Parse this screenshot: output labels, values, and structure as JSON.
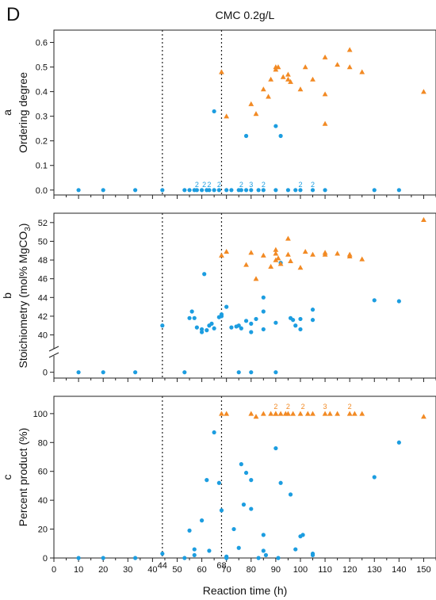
{
  "figure": {
    "panel_letter": "D",
    "title": "CMC 0.2g/L",
    "xlabel": "Reaction time (h)"
  },
  "colors": {
    "blue": "#1c9de0",
    "orange": "#f28a24"
  },
  "chart_data": [
    {
      "type": "scatter",
      "panel": "a",
      "ylabel": "Ordering degree",
      "xlim": [
        0,
        155
      ],
      "ylim": [
        -0.02,
        0.65
      ],
      "yticks": [
        0.0,
        0.1,
        0.2,
        0.3,
        0.4,
        0.5,
        0.6
      ],
      "vlines": [
        44,
        68
      ],
      "series": [
        {
          "marker": "circle",
          "color": "blue",
          "x": [
            10,
            20,
            33,
            44,
            53,
            55,
            57,
            58,
            60,
            62,
            63,
            65,
            67,
            70,
            72,
            75,
            76,
            78,
            80,
            83,
            85,
            90,
            95,
            98,
            100,
            105,
            110,
            130,
            140,
            65,
            90,
            92,
            78
          ],
          "y": [
            0,
            0,
            0,
            0,
            0,
            0,
            0,
            0,
            0,
            0,
            0,
            0,
            0,
            0,
            0,
            0,
            0,
            0,
            0,
            0,
            0,
            0,
            0,
            0,
            0,
            0,
            0,
            0,
            0,
            0.32,
            0.26,
            0.22,
            0.22
          ]
        },
        {
          "marker": "triangle",
          "color": "orange",
          "x": [
            68,
            70,
            80,
            82,
            85,
            87,
            88,
            90,
            90,
            91,
            93,
            95,
            95,
            96,
            100,
            102,
            105,
            110,
            110,
            110,
            115,
            120,
            120,
            125,
            150
          ],
          "y": [
            0.48,
            0.3,
            0.35,
            0.31,
            0.41,
            0.38,
            0.45,
            0.5,
            0.49,
            0.5,
            0.46,
            0.45,
            0.47,
            0.44,
            0.41,
            0.5,
            0.45,
            0.54,
            0.27,
            0.39,
            0.51,
            0.57,
            0.5,
            0.48,
            0.4
          ]
        }
      ],
      "annotations": [
        {
          "text": "2",
          "x": 58,
          "y": 0.0,
          "color": "blue"
        },
        {
          "text": "2",
          "x": 61,
          "y": 0.0,
          "color": "blue"
        },
        {
          "text": "2",
          "x": 63,
          "y": 0.0,
          "color": "blue"
        },
        {
          "text": "2",
          "x": 67,
          "y": 0.0,
          "color": "blue"
        },
        {
          "text": "2",
          "x": 76,
          "y": 0.0,
          "color": "blue"
        },
        {
          "text": "3",
          "x": 80,
          "y": 0.0,
          "color": "blue"
        },
        {
          "text": "2",
          "x": 85,
          "y": 0.0,
          "color": "blue"
        },
        {
          "text": "2",
          "x": 100,
          "y": 0.0,
          "color": "blue"
        },
        {
          "text": "2",
          "x": 105,
          "y": 0.0,
          "color": "blue"
        }
      ]
    },
    {
      "type": "scatter",
      "panel": "b",
      "ylabel_main": "Stoichiometry (mol% MgCO",
      "ylabel_sub": "3",
      "ylabel_end": ")",
      "xlim": [
        0,
        155
      ],
      "ylim_upper": [
        39.2,
        53
      ],
      "yticks_upper": [
        40,
        42,
        44,
        46,
        48,
        50,
        52
      ],
      "ylim_lower": [
        -0.5,
        1
      ],
      "yticks_lower": [
        0
      ],
      "vlines": [
        44,
        68
      ],
      "series": [
        {
          "marker": "circle",
          "color": "blue",
          "x": [
            44,
            55,
            56,
            57,
            58,
            60,
            61,
            62,
            63,
            64,
            65,
            67,
            68,
            70,
            72,
            74,
            75,
            76,
            78,
            80,
            80,
            82,
            85,
            85,
            85,
            90,
            92,
            96,
            97,
            98,
            100,
            100,
            105,
            105,
            130,
            140,
            60,
            68,
            10,
            20,
            33,
            53,
            75,
            80,
            90
          ],
          "y": [
            41.0,
            41.8,
            42.5,
            41.8,
            40.8,
            40.3,
            46.5,
            40.5,
            41.0,
            41.2,
            40.7,
            41.9,
            42.0,
            43.0,
            40.8,
            40.9,
            41.0,
            40.7,
            41.5,
            41.2,
            40.3,
            41.7,
            40.6,
            42.5,
            44.0,
            41.3,
            47.7,
            41.8,
            41.6,
            41.0,
            41.7,
            40.6,
            41.6,
            42.7,
            43.7,
            43.6,
            40.6,
            42.2,
            0,
            0,
            0,
            0,
            0,
            0,
            0
          ],
          "lower_axis_points": [
            false,
            false,
            false,
            false,
            false,
            false,
            false,
            false,
            false,
            false,
            false,
            false,
            false,
            false,
            false,
            false,
            false,
            false,
            false,
            false,
            false,
            false,
            false,
            false,
            false,
            false,
            false,
            false,
            false,
            false,
            false,
            false,
            false,
            false,
            false,
            false,
            false,
            false,
            true,
            true,
            true,
            true,
            true,
            true,
            true
          ]
        },
        {
          "marker": "triangle",
          "color": "orange",
          "x": [
            68,
            70,
            78,
            80,
            82,
            85,
            88,
            90,
            90,
            90,
            91,
            92,
            95,
            95,
            96,
            100,
            102,
            105,
            110,
            110,
            115,
            120,
            120,
            125,
            150
          ],
          "y": [
            48.5,
            48.9,
            47.5,
            48.8,
            46.0,
            48.5,
            47.3,
            48.0,
            48.7,
            49.1,
            48.2,
            47.6,
            48.6,
            50.3,
            47.9,
            47.2,
            48.9,
            48.6,
            48.8,
            48.6,
            48.7,
            48.6,
            48.4,
            48.1,
            52.3
          ]
        }
      ]
    },
    {
      "type": "scatter",
      "panel": "c",
      "ylabel": "Percent product (%)",
      "xlim": [
        0,
        155
      ],
      "ylim": [
        0,
        112
      ],
      "yticks": [
        0,
        20,
        40,
        60,
        80,
        100
      ],
      "xticks": [
        0,
        10,
        20,
        30,
        40,
        50,
        60,
        70,
        80,
        90,
        100,
        110,
        120,
        130,
        140,
        150
      ],
      "vlines": [
        44,
        68
      ],
      "vline_labels": [
        "44",
        "68"
      ],
      "series": [
        {
          "marker": "circle",
          "color": "blue",
          "x": [
            10,
            20,
            33,
            44,
            53,
            55,
            57,
            57,
            60,
            62,
            63,
            65,
            67,
            68,
            70,
            73,
            75,
            76,
            77,
            78,
            80,
            80,
            85,
            85,
            86,
            90,
            91,
            92,
            96,
            98,
            100,
            101,
            105,
            105,
            130,
            140,
            70,
            83
          ],
          "y": [
            0,
            0,
            0,
            3,
            0,
            19,
            2,
            6,
            26,
            54,
            5,
            87,
            52,
            33,
            0,
            20,
            7,
            65,
            37,
            59,
            34,
            54,
            16,
            5,
            2,
            76,
            0,
            52,
            44,
            6,
            15,
            16,
            3,
            2,
            56,
            80,
            1,
            0
          ]
        },
        {
          "marker": "triangle",
          "color": "orange",
          "x": [
            68,
            70,
            80,
            82,
            85,
            88,
            90,
            90,
            92,
            94,
            95,
            97,
            100,
            103,
            105,
            110,
            112,
            115,
            120,
            122,
            125,
            150
          ],
          "y": [
            100,
            100,
            100,
            98,
            100,
            100,
            100,
            100,
            100,
            100,
            100,
            100,
            100,
            100,
            100,
            100,
            100,
            100,
            100,
            100,
            100,
            98
          ]
        }
      ],
      "annotations": [
        {
          "text": "2",
          "x": 90,
          "y": 100,
          "color": "orange"
        },
        {
          "text": "2",
          "x": 95,
          "y": 100,
          "color": "orange"
        },
        {
          "text": "2",
          "x": 101,
          "y": 100,
          "color": "orange"
        },
        {
          "text": "3",
          "x": 110,
          "y": 100,
          "color": "orange"
        },
        {
          "text": "2",
          "x": 120,
          "y": 100,
          "color": "orange"
        }
      ]
    }
  ]
}
